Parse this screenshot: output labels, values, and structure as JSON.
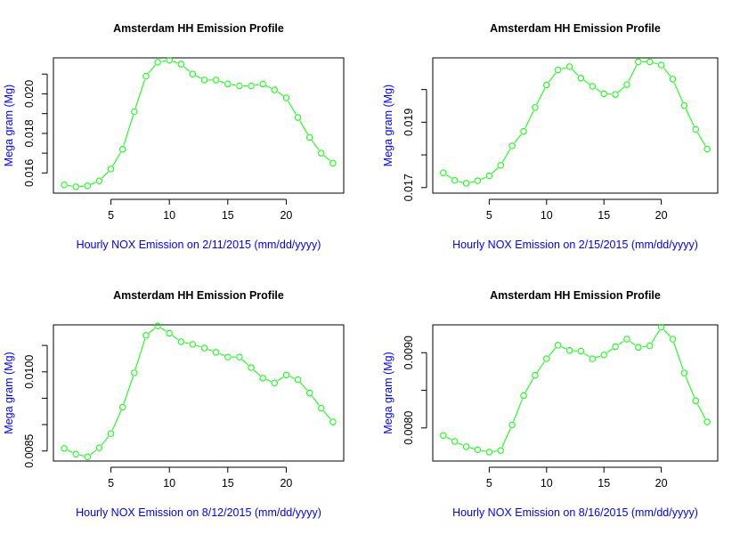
{
  "colors": {
    "series": "#00ff00",
    "axis_label": "#0000ff",
    "title": "#000000",
    "frame": "#000000"
  },
  "chart_data": [
    {
      "type": "line",
      "style": "points-and-dashed-lines",
      "title": "Amsterdam HH Emission Profile",
      "xlabel": "Hourly NOX Emission on 2/11/2015 (mm/dd/yyyy)",
      "ylabel": "Mega gram (Mg)",
      "x": [
        1,
        2,
        3,
        4,
        5,
        6,
        7,
        8,
        9,
        10,
        11,
        12,
        13,
        14,
        15,
        16,
        17,
        18,
        19,
        20,
        21,
        22,
        23,
        24
      ],
      "values": [
        0.0154,
        0.0153,
        0.01535,
        0.0156,
        0.0162,
        0.0172,
        0.0191,
        0.0209,
        0.0216,
        0.0217,
        0.0215,
        0.021,
        0.0207,
        0.0207,
        0.0205,
        0.0204,
        0.0204,
        0.0205,
        0.0202,
        0.0198,
        0.0188,
        0.0178,
        0.017,
        0.0165
      ],
      "xlim": [
        0.08,
        24.92
      ],
      "ylim": [
        0.01498,
        0.02182
      ],
      "xticks": [
        5,
        10,
        15,
        20
      ],
      "yticks": [
        0.016,
        0.018,
        0.02
      ],
      "ytick_labels": [
        "0.016",
        "0.018",
        "0.020"
      ],
      "yaxis_extra_ticks": [
        0.017,
        0.019,
        0.021
      ],
      "grid": false
    },
    {
      "type": "line",
      "style": "points-and-dashed-lines",
      "title": "Amsterdam HH Emission Profile",
      "xlabel": "Hourly NOX Emission on 2/15/2015 (mm/dd/yyyy)",
      "ylabel": "Mega gram (Mg)",
      "x": [
        1,
        2,
        3,
        4,
        5,
        6,
        7,
        8,
        9,
        10,
        11,
        12,
        13,
        14,
        15,
        16,
        17,
        18,
        19,
        20,
        21,
        22,
        23,
        24
      ],
      "values": [
        0.01745,
        0.01722,
        0.01713,
        0.01721,
        0.01736,
        0.01768,
        0.01828,
        0.01872,
        0.01945,
        0.02014,
        0.0206,
        0.0207,
        0.02035,
        0.0201,
        0.01987,
        0.01985,
        0.02015,
        0.02085,
        0.02085,
        0.02075,
        0.02032,
        0.01951,
        0.01878,
        0.01818
      ],
      "xlim": [
        0.08,
        24.92
      ],
      "ylim": [
        0.01683,
        0.02097
      ],
      "xticks": [
        5,
        10,
        15,
        20
      ],
      "yticks": [
        0.017,
        0.019
      ],
      "ytick_labels": [
        "0.017",
        "0.019"
      ],
      "yaxis_extra_ticks": [
        0.018,
        0.02
      ],
      "grid": false
    },
    {
      "type": "line",
      "style": "points-and-dashed-lines",
      "title": "Amsterdam HH Emission Profile",
      "xlabel": "Hourly NOX Emission on 8/12/2015 (mm/dd/yyyy)",
      "ylabel": "Mega gram (Mg)",
      "x": [
        1,
        2,
        3,
        4,
        5,
        6,
        7,
        8,
        9,
        10,
        11,
        12,
        13,
        14,
        15,
        16,
        17,
        18,
        19,
        20,
        21,
        22,
        23,
        24
      ],
      "values": [
        0.00855,
        0.00844,
        0.00839,
        0.00856,
        0.00883,
        0.00933,
        0.00998,
        0.01069,
        0.01087,
        0.01073,
        0.01057,
        0.01052,
        0.01045,
        0.01037,
        0.01028,
        0.01028,
        0.01008,
        0.00988,
        0.00979,
        0.00994,
        0.00985,
        0.0096,
        0.00931,
        0.00905
      ],
      "xlim": [
        0.08,
        24.92
      ],
      "ylim": [
        0.00831,
        0.01089
      ],
      "xticks": [
        5,
        10,
        15,
        20
      ],
      "yticks": [
        0.0085,
        0.01
      ],
      "ytick_labels": [
        "0.0085",
        "0.0100"
      ],
      "yaxis_extra_ticks": [
        0.009,
        0.0095,
        0.0105
      ],
      "grid": false
    },
    {
      "type": "line",
      "style": "points-and-dashed-lines",
      "title": "Amsterdam HH Emission Profile",
      "xlabel": "Hourly NOX Emission on 8/16/2015 (mm/dd/yyyy)",
      "ylabel": "Mega gram (Mg)",
      "x": [
        1,
        2,
        3,
        4,
        5,
        6,
        7,
        8,
        9,
        10,
        11,
        12,
        13,
        14,
        15,
        16,
        17,
        18,
        19,
        20,
        21,
        22,
        23,
        24
      ],
      "values": [
        0.0079,
        0.00782,
        0.00775,
        0.00771,
        0.00768,
        0.0077,
        0.00804,
        0.00843,
        0.0087,
        0.00892,
        0.0091,
        0.00903,
        0.00902,
        0.00892,
        0.00897,
        0.00908,
        0.00918,
        0.00907,
        0.00909,
        0.00934,
        0.00918,
        0.00873,
        0.00836,
        0.00808
      ],
      "xlim": [
        0.08,
        24.92
      ],
      "ylim": [
        0.00756,
        0.00937
      ],
      "xticks": [
        5,
        10,
        15,
        20
      ],
      "yticks": [
        0.008,
        0.009
      ],
      "ytick_labels": [
        "0.0080",
        "0.0090"
      ],
      "yaxis_extra_ticks": [
        0.0085
      ],
      "grid": false
    }
  ]
}
